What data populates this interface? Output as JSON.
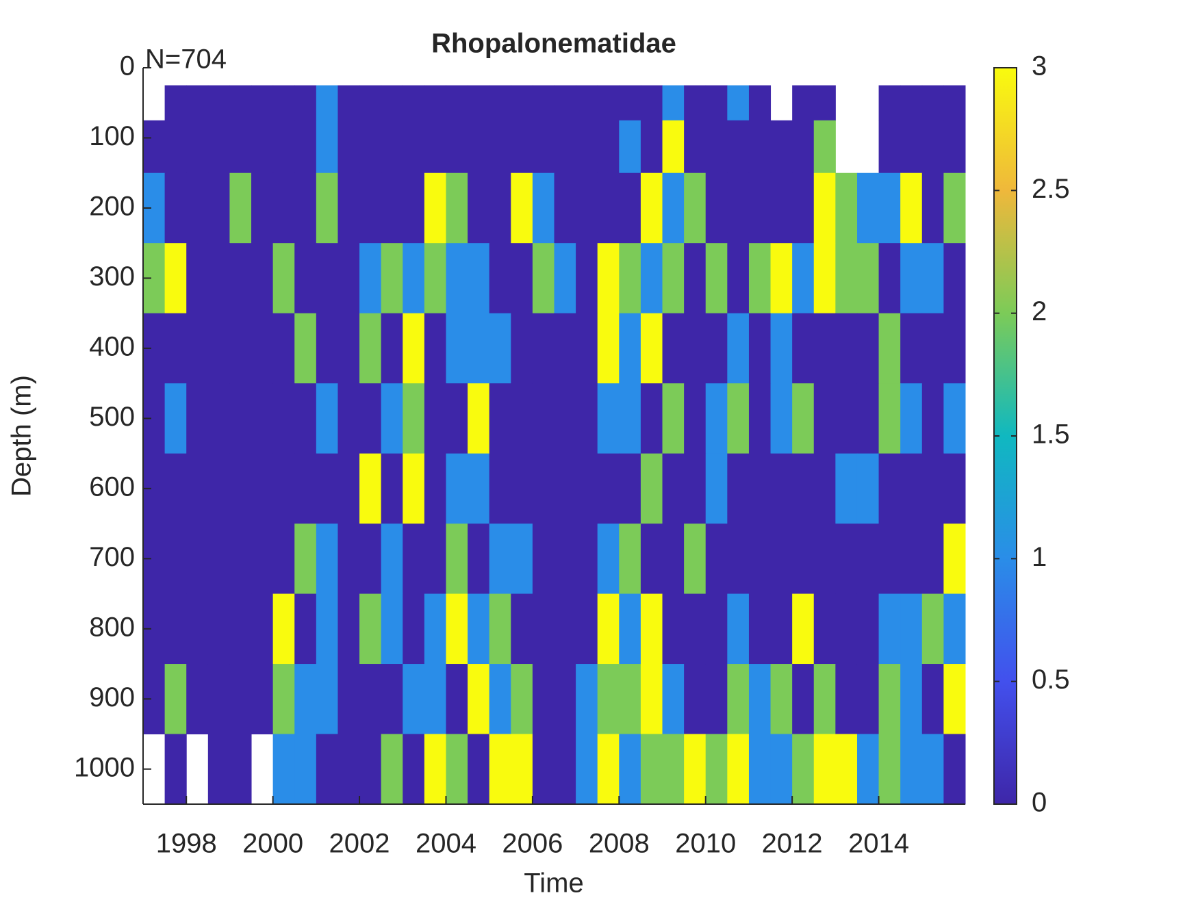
{
  "chart_data": {
    "type": "heatmap",
    "title": "Rhopalonematidae",
    "annotation": "N=704",
    "xlabel": "Time",
    "ylabel": "Depth (m)",
    "x": [
      1997.25,
      1997.75,
      1998.25,
      1998.75,
      1999.25,
      1999.75,
      2000.25,
      2000.75,
      2001.25,
      2001.75,
      2002.25,
      2002.75,
      2003.25,
      2003.75,
      2004.25,
      2004.75,
      2005.25,
      2005.75,
      2006.25,
      2006.75,
      2007.25,
      2007.75,
      2008.25,
      2008.75,
      2009.25,
      2009.75,
      2010.25,
      2010.75,
      2011.25,
      2011.75,
      2012.25,
      2012.75,
      2013.25,
      2013.75,
      2014.25,
      2014.75,
      2015.25,
      2015.75
    ],
    "y": [
      50,
      100,
      200,
      300,
      400,
      500,
      600,
      700,
      800,
      900,
      1000
    ],
    "z": [
      [
        null,
        0,
        0,
        0,
        0,
        0,
        0,
        0,
        1,
        0,
        0,
        0,
        0,
        0,
        0,
        0,
        0,
        0,
        0,
        0,
        0,
        0,
        0,
        0,
        1,
        0,
        0,
        1,
        0,
        null,
        0,
        0,
        null,
        null,
        0,
        0,
        0,
        0
      ],
      [
        0,
        0,
        0,
        0,
        0,
        0,
        0,
        0,
        1,
        0,
        0,
        0,
        0,
        0,
        0,
        0,
        0,
        0,
        0,
        0,
        0,
        0,
        1,
        0,
        3,
        0,
        0,
        0,
        0,
        0,
        0,
        2,
        null,
        null,
        0,
        0,
        0,
        0
      ],
      [
        1,
        0,
        0,
        0,
        2,
        0,
        0,
        0,
        2,
        0,
        0,
        0,
        0,
        3,
        2,
        0,
        0,
        3,
        1,
        0,
        0,
        0,
        0,
        3,
        1,
        2,
        0,
        0,
        0,
        0,
        0,
        3,
        2,
        1,
        1,
        3,
        0,
        2
      ],
      [
        2,
        3,
        0,
        0,
        0,
        0,
        2,
        0,
        0,
        0,
        1,
        2,
        1,
        2,
        1,
        1,
        0,
        0,
        2,
        1,
        0,
        3,
        2,
        1,
        2,
        0,
        2,
        0,
        2,
        3,
        1,
        3,
        2,
        2,
        0,
        1,
        1,
        0
      ],
      [
        0,
        0,
        0,
        0,
        0,
        0,
        0,
        2,
        0,
        0,
        2,
        0,
        3,
        0,
        1,
        1,
        1,
        0,
        0,
        0,
        0,
        3,
        1,
        3,
        0,
        0,
        0,
        1,
        0,
        1,
        0,
        0,
        0,
        0,
        2,
        0,
        0,
        0
      ],
      [
        0,
        1,
        0,
        0,
        0,
        0,
        0,
        0,
        1,
        0,
        0,
        1,
        2,
        0,
        0,
        3,
        0,
        0,
        0,
        0,
        0,
        1,
        1,
        0,
        2,
        0,
        1,
        2,
        0,
        1,
        2,
        0,
        0,
        0,
        2,
        1,
        0,
        1
      ],
      [
        0,
        0,
        0,
        0,
        0,
        0,
        0,
        0,
        0,
        0,
        3,
        0,
        3,
        0,
        1,
        1,
        0,
        0,
        0,
        0,
        0,
        0,
        0,
        2,
        0,
        0,
        1,
        0,
        0,
        0,
        0,
        0,
        1,
        1,
        0,
        0,
        0,
        0
      ],
      [
        0,
        0,
        0,
        0,
        0,
        0,
        0,
        2,
        1,
        0,
        0,
        1,
        0,
        0,
        2,
        0,
        1,
        1,
        0,
        0,
        0,
        1,
        2,
        0,
        0,
        2,
        0,
        0,
        0,
        0,
        0,
        0,
        0,
        0,
        0,
        0,
        0,
        3
      ],
      [
        0,
        0,
        0,
        0,
        0,
        0,
        3,
        0,
        1,
        0,
        2,
        1,
        0,
        1,
        3,
        1,
        2,
        0,
        0,
        0,
        0,
        3,
        1,
        3,
        0,
        0,
        0,
        1,
        0,
        0,
        3,
        0,
        0,
        0,
        1,
        1,
        2,
        1
      ],
      [
        0,
        2,
        0,
        0,
        0,
        0,
        2,
        1,
        1,
        0,
        0,
        0,
        1,
        1,
        0,
        3,
        1,
        2,
        0,
        0,
        1,
        2,
        2,
        3,
        1,
        0,
        0,
        2,
        1,
        2,
        0,
        2,
        0,
        0,
        2,
        1,
        0,
        3
      ],
      [
        null,
        0,
        null,
        0,
        0,
        null,
        1,
        1,
        0,
        0,
        0,
        2,
        0,
        3,
        2,
        0,
        3,
        3,
        0,
        0,
        1,
        3,
        1,
        2,
        2,
        3,
        2,
        3,
        1,
        1,
        2,
        3,
        3,
        1,
        2,
        1,
        1,
        0
      ]
    ],
    "xlim": [
      1997,
      2016
    ],
    "xticks": [
      1998,
      2000,
      2002,
      2004,
      2006,
      2008,
      2010,
      2012,
      2014
    ],
    "ylim": [
      0,
      1050
    ],
    "yticks": [
      0,
      100,
      200,
      300,
      400,
      500,
      600,
      700,
      800,
      900,
      1000
    ],
    "y_reversed": true,
    "clim": [
      0,
      3
    ],
    "cticks": [
      0,
      0.5,
      1,
      1.5,
      2,
      2.5,
      3
    ],
    "colormap": [
      "#3e26a8",
      "#4250ed",
      "#2a8de8",
      "#10b8c0",
      "#7ccb58",
      "#efb83b",
      "#f9fb0e"
    ]
  }
}
